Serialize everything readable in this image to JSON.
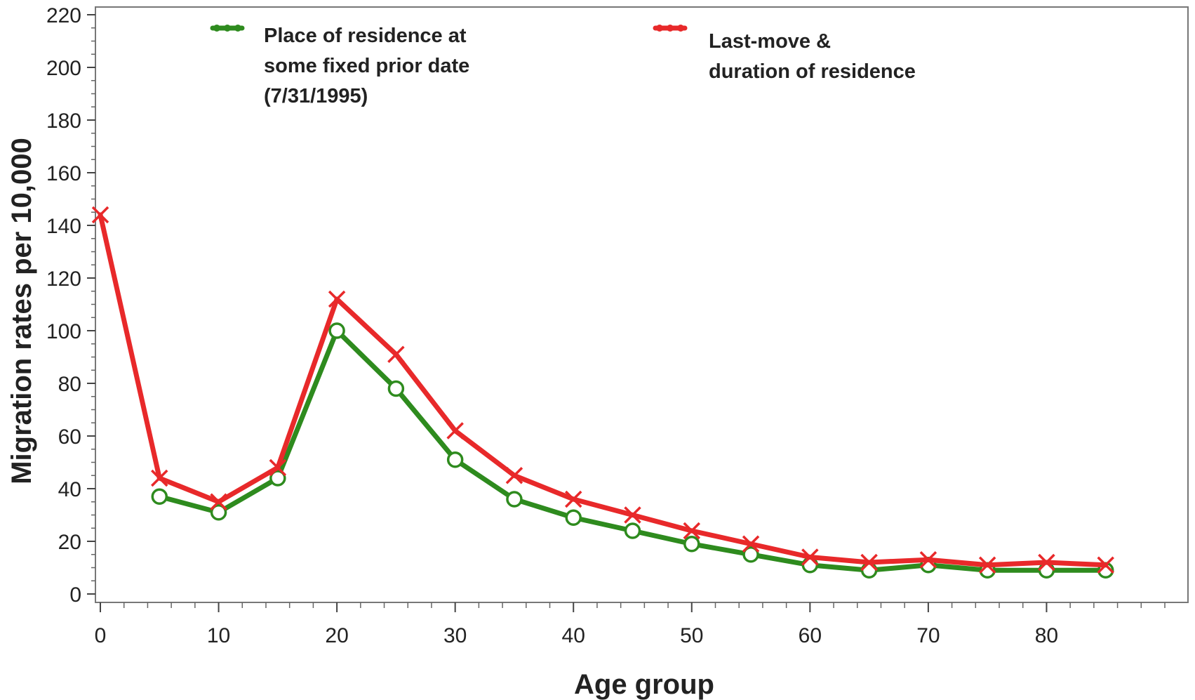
{
  "chart_data": {
    "type": "line",
    "xlabel": "Age group",
    "ylabel": "Migration rates per 10,000",
    "xlim": [
      0,
      90
    ],
    "ylim": [
      0,
      220
    ],
    "x_ticks": [
      0,
      10,
      20,
      30,
      40,
      50,
      60,
      70,
      80
    ],
    "y_ticks": [
      0,
      20,
      40,
      60,
      80,
      100,
      120,
      140,
      160,
      180,
      200,
      220
    ],
    "grid": false,
    "legend": "top",
    "series": [
      {
        "name_lines": [
          "Place of residence at",
          "some fixed prior date",
          "(7/31/1995)"
        ],
        "color": "#2e8b1e",
        "marker": "circle",
        "points": [
          {
            "x": 5,
            "y": 37
          },
          {
            "x": 10,
            "y": 31
          },
          {
            "x": 15,
            "y": 44
          },
          {
            "x": 20,
            "y": 100
          },
          {
            "x": 25,
            "y": 78
          },
          {
            "x": 30,
            "y": 51
          },
          {
            "x": 35,
            "y": 36
          },
          {
            "x": 40,
            "y": 29
          },
          {
            "x": 45,
            "y": 24
          },
          {
            "x": 50,
            "y": 19
          },
          {
            "x": 55,
            "y": 15
          },
          {
            "x": 60,
            "y": 11
          },
          {
            "x": 65,
            "y": 9
          },
          {
            "x": 70,
            "y": 11
          },
          {
            "x": 75,
            "y": 9
          },
          {
            "x": 80,
            "y": 9
          },
          {
            "x": 85,
            "y": 9
          }
        ]
      },
      {
        "name_lines": [
          "Last-move &",
          "duration of residence"
        ],
        "color": "#e8292a",
        "marker": "x",
        "points": [
          {
            "x": 0,
            "y": 144
          },
          {
            "x": 5,
            "y": 44
          },
          {
            "x": 10,
            "y": 35
          },
          {
            "x": 15,
            "y": 48
          },
          {
            "x": 20,
            "y": 112
          },
          {
            "x": 25,
            "y": 91
          },
          {
            "x": 30,
            "y": 62
          },
          {
            "x": 35,
            "y": 45
          },
          {
            "x": 40,
            "y": 36
          },
          {
            "x": 45,
            "y": 30
          },
          {
            "x": 50,
            "y": 24
          },
          {
            "x": 55,
            "y": 19
          },
          {
            "x": 60,
            "y": 14
          },
          {
            "x": 65,
            "y": 12
          },
          {
            "x": 70,
            "y": 13
          },
          {
            "x": 75,
            "y": 11
          },
          {
            "x": 80,
            "y": 12
          },
          {
            "x": 85,
            "y": 11
          }
        ]
      }
    ]
  }
}
